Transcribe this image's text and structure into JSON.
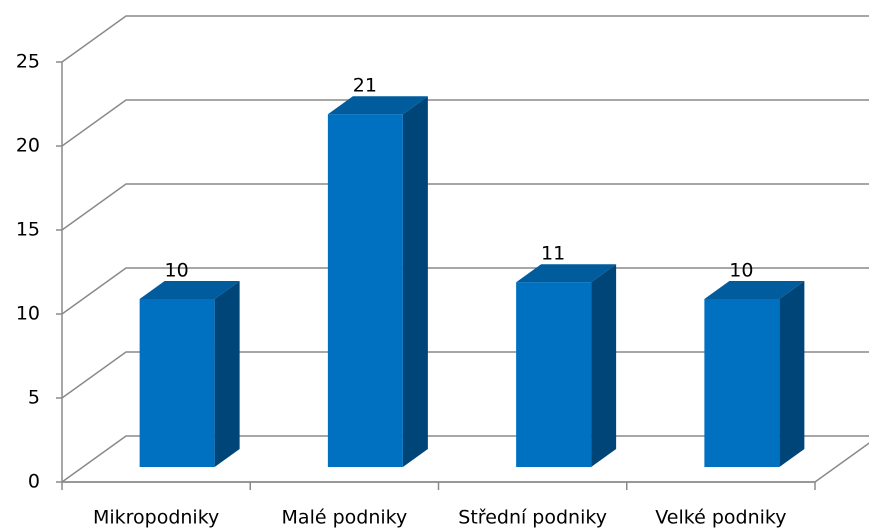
{
  "chart_data": {
    "type": "bar",
    "categories": [
      "Mikropodniky",
      "Malé podniky",
      "Střední podniky",
      "Velké podniky"
    ],
    "values": [
      10,
      21,
      11,
      10
    ],
    "color": "#0070c0",
    "ylim": [
      0,
      25
    ],
    "yticks": [
      0,
      5,
      10,
      15,
      20,
      25
    ],
    "grid": true
  }
}
